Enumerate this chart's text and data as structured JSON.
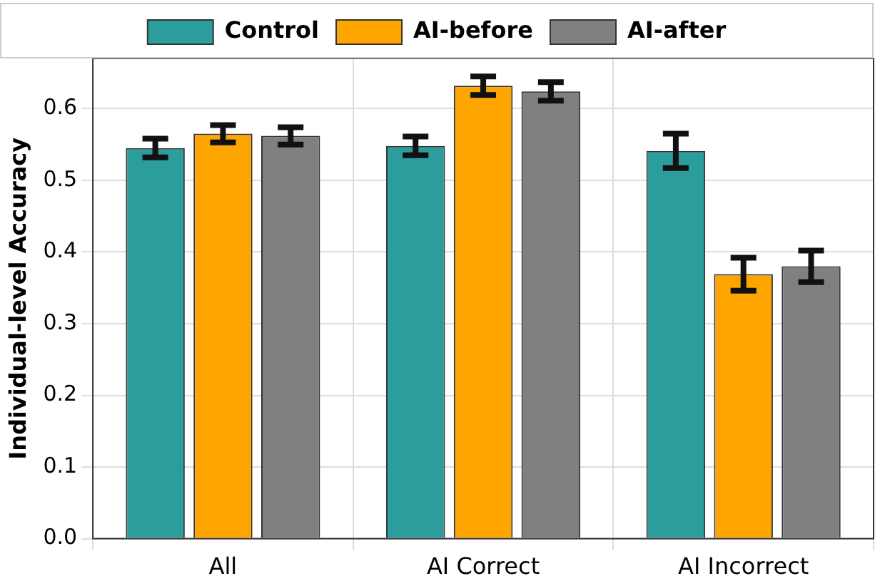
{
  "chart_data": {
    "type": "bar",
    "ylabel": "Individual-level Accuracy",
    "categories": [
      "All",
      "AI Correct",
      "AI Incorrect"
    ],
    "series": [
      {
        "name": "Control",
        "color": "#2a9d9c",
        "values": [
          0.545,
          0.548,
          0.541
        ],
        "errors": [
          0.013,
          0.013,
          0.024
        ]
      },
      {
        "name": "AI-before",
        "color": "#ffa500",
        "values": [
          0.565,
          0.632,
          0.369
        ],
        "errors": [
          0.012,
          0.013,
          0.023
        ]
      },
      {
        "name": "AI-after",
        "color": "#808080",
        "values": [
          0.562,
          0.624,
          0.38
        ],
        "errors": [
          0.012,
          0.013,
          0.022
        ]
      }
    ],
    "ylim": [
      0,
      0.67
    ],
    "yticks": [
      {
        "value": 0,
        "label": "0.0"
      },
      0.1,
      0.2,
      0.3,
      0.4,
      0.5,
      0.6
    ],
    "grid": true,
    "legend": "top"
  }
}
